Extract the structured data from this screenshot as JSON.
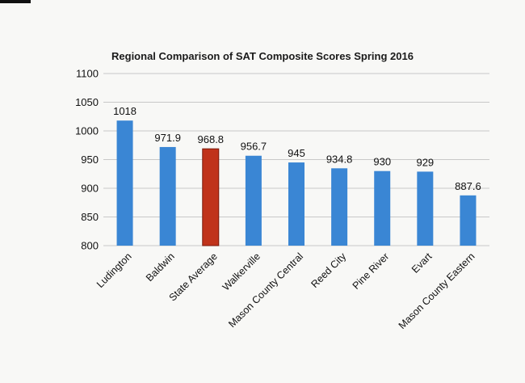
{
  "chart_data": {
    "type": "bar",
    "title": "Regional Comparison of SAT Composite Scores Spring 2016",
    "xlabel": "",
    "ylabel": "",
    "categories": [
      "Ludington",
      "Baldwin",
      "State Average",
      "Walkerville",
      "Mason County Central",
      "Reed City",
      "Pine River",
      "Evart",
      "Mason County Eastern"
    ],
    "values": [
      1018,
      971.9,
      968.8,
      956.7,
      945,
      934.8,
      930,
      929,
      887.6
    ],
    "data_labels": [
      "1018",
      "971.9",
      "968.8",
      "956.7",
      "945",
      "934.8",
      "930",
      "929",
      "887.6"
    ],
    "highlight_category": "State Average",
    "ylim": [
      800,
      1100
    ],
    "yticks": [
      800,
      850,
      900,
      950,
      1000,
      1050,
      1100
    ],
    "grid": true,
    "legend": "none",
    "colors": {
      "bar": "#3a86d4",
      "highlight": "#c0331b",
      "highlight_border": "#7a1a0c",
      "grid": "#c8c8c8"
    }
  }
}
